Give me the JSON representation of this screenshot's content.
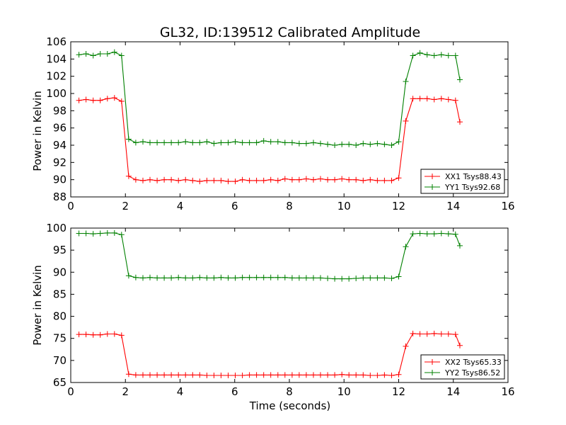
{
  "figure": {
    "title": "GL32, ID:139512 Calibrated Amplitude"
  },
  "chart_data": [
    {
      "type": "line",
      "title": "GL32, ID:139512 Calibrated Amplitude",
      "xlabel": "",
      "ylabel": "Power in Kelvin",
      "xlim": [
        0,
        16
      ],
      "ylim": [
        88,
        106
      ],
      "xticks": [
        0,
        2,
        4,
        6,
        8,
        10,
        12,
        14,
        16
      ],
      "yticks": [
        88,
        90,
        92,
        94,
        96,
        98,
        100,
        102,
        104,
        106
      ],
      "legend_position": "lower-right",
      "x": [
        0.3,
        0.56,
        0.82,
        1.08,
        1.34,
        1.6,
        1.86,
        2.12,
        2.38,
        2.64,
        2.9,
        3.16,
        3.42,
        3.68,
        3.94,
        4.2,
        4.46,
        4.72,
        4.98,
        5.24,
        5.5,
        5.76,
        6.02,
        6.28,
        6.54,
        6.8,
        7.06,
        7.32,
        7.58,
        7.84,
        8.1,
        8.36,
        8.62,
        8.88,
        9.14,
        9.4,
        9.66,
        9.92,
        10.18,
        10.44,
        10.7,
        10.96,
        11.22,
        11.48,
        11.74,
        12.0,
        12.26,
        12.52,
        12.78,
        13.04,
        13.3,
        13.56,
        13.82,
        14.08,
        14.24
      ],
      "series": [
        {
          "name": "XX1 Tsys88.43",
          "color": "#ff0000",
          "values": [
            99.2,
            99.3,
            99.2,
            99.2,
            99.4,
            99.5,
            99.1,
            90.4,
            90.0,
            89.9,
            90.0,
            89.9,
            90.0,
            90.0,
            89.9,
            90.0,
            89.9,
            89.8,
            89.9,
            89.9,
            89.9,
            89.8,
            89.8,
            90.0,
            89.9,
            89.9,
            89.9,
            90.0,
            89.9,
            90.1,
            90.0,
            90.0,
            90.1,
            90.0,
            90.1,
            90.0,
            90.0,
            90.1,
            90.0,
            90.0,
            89.9,
            90.0,
            89.9,
            89.9,
            89.9,
            90.2,
            96.8,
            99.4,
            99.4,
            99.4,
            99.3,
            99.4,
            99.3,
            99.2,
            96.7
          ]
        },
        {
          "name": "YY1 Tsys92.68",
          "color": "#008000",
          "values": [
            104.5,
            104.6,
            104.4,
            104.6,
            104.6,
            104.8,
            104.4,
            94.7,
            94.3,
            94.4,
            94.3,
            94.3,
            94.3,
            94.3,
            94.3,
            94.4,
            94.3,
            94.3,
            94.4,
            94.2,
            94.3,
            94.3,
            94.4,
            94.3,
            94.3,
            94.3,
            94.5,
            94.4,
            94.4,
            94.3,
            94.3,
            94.2,
            94.2,
            94.3,
            94.2,
            94.1,
            94.0,
            94.1,
            94.1,
            94.0,
            94.2,
            94.1,
            94.2,
            94.1,
            94.0,
            94.4,
            101.4,
            104.4,
            104.7,
            104.5,
            104.4,
            104.5,
            104.4,
            104.4,
            101.6
          ]
        }
      ]
    },
    {
      "type": "line",
      "title": "",
      "xlabel": "Time (seconds)",
      "ylabel": "Power in Kelvin",
      "xlim": [
        0,
        16
      ],
      "ylim": [
        65,
        100
      ],
      "xticks": [
        0,
        2,
        4,
        6,
        8,
        10,
        12,
        14,
        16
      ],
      "yticks": [
        65,
        70,
        75,
        80,
        85,
        90,
        95,
        100
      ],
      "legend_position": "lower-right",
      "x": [
        0.3,
        0.56,
        0.82,
        1.08,
        1.34,
        1.6,
        1.86,
        2.12,
        2.38,
        2.64,
        2.9,
        3.16,
        3.42,
        3.68,
        3.94,
        4.2,
        4.46,
        4.72,
        4.98,
        5.24,
        5.5,
        5.76,
        6.02,
        6.28,
        6.54,
        6.8,
        7.06,
        7.32,
        7.58,
        7.84,
        8.1,
        8.36,
        8.62,
        8.88,
        9.14,
        9.4,
        9.66,
        9.92,
        10.18,
        10.44,
        10.7,
        10.96,
        11.22,
        11.48,
        11.74,
        12.0,
        12.26,
        12.52,
        12.78,
        13.04,
        13.3,
        13.56,
        13.82,
        14.08,
        14.24
      ],
      "series": [
        {
          "name": "XX2 Tsys65.33",
          "color": "#ff0000",
          "values": [
            75.9,
            75.9,
            75.8,
            75.8,
            76.0,
            76.0,
            75.7,
            66.9,
            66.7,
            66.7,
            66.7,
            66.7,
            66.7,
            66.7,
            66.7,
            66.7,
            66.7,
            66.7,
            66.6,
            66.6,
            66.6,
            66.6,
            66.6,
            66.6,
            66.7,
            66.7,
            66.7,
            66.7,
            66.7,
            66.7,
            66.7,
            66.7,
            66.7,
            66.7,
            66.7,
            66.7,
            66.7,
            66.8,
            66.7,
            66.7,
            66.7,
            66.6,
            66.6,
            66.7,
            66.6,
            66.8,
            73.2,
            76.1,
            76.0,
            76.0,
            76.1,
            76.0,
            76.0,
            75.9,
            73.4
          ]
        },
        {
          "name": "YY2 Tsys86.52",
          "color": "#008000",
          "values": [
            98.8,
            98.8,
            98.7,
            98.8,
            98.9,
            98.9,
            98.5,
            89.2,
            88.8,
            88.7,
            88.8,
            88.7,
            88.7,
            88.7,
            88.8,
            88.7,
            88.7,
            88.8,
            88.7,
            88.7,
            88.8,
            88.7,
            88.7,
            88.8,
            88.8,
            88.8,
            88.8,
            88.8,
            88.8,
            88.8,
            88.7,
            88.7,
            88.7,
            88.7,
            88.7,
            88.6,
            88.5,
            88.5,
            88.5,
            88.6,
            88.7,
            88.7,
            88.7,
            88.7,
            88.6,
            89.0,
            95.8,
            98.7,
            98.8,
            98.7,
            98.7,
            98.8,
            98.7,
            98.6,
            96.0
          ]
        }
      ]
    }
  ]
}
